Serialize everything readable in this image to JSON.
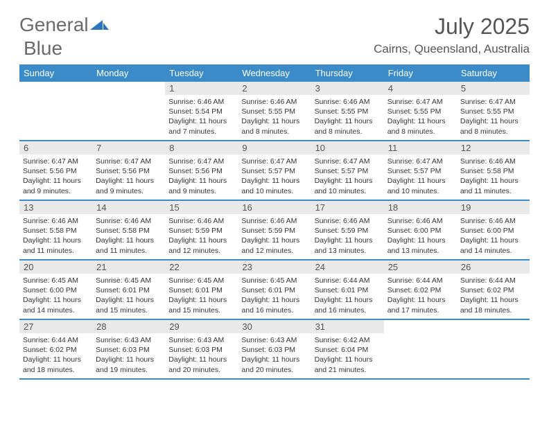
{
  "logo": {
    "word1": "General",
    "word2": "Blue"
  },
  "title": "July 2025",
  "location": "Cairns, Queensland, Australia",
  "colors": {
    "header_bg": "#3b8bc9",
    "header_text": "#ffffff",
    "daynum_bg": "#e9e9e9",
    "text": "#333333",
    "logo_text": "#6a6a6a",
    "logo_blue": "#2e75c0"
  },
  "weekdays": [
    "Sunday",
    "Monday",
    "Tuesday",
    "Wednesday",
    "Thursday",
    "Friday",
    "Saturday"
  ],
  "weeks": [
    [
      null,
      null,
      {
        "n": "1",
        "sr": "6:46 AM",
        "ss": "5:54 PM",
        "dl": "11 hours and 7 minutes."
      },
      {
        "n": "2",
        "sr": "6:46 AM",
        "ss": "5:55 PM",
        "dl": "11 hours and 8 minutes."
      },
      {
        "n": "3",
        "sr": "6:46 AM",
        "ss": "5:55 PM",
        "dl": "11 hours and 8 minutes."
      },
      {
        "n": "4",
        "sr": "6:47 AM",
        "ss": "5:55 PM",
        "dl": "11 hours and 8 minutes."
      },
      {
        "n": "5",
        "sr": "6:47 AM",
        "ss": "5:55 PM",
        "dl": "11 hours and 8 minutes."
      }
    ],
    [
      {
        "n": "6",
        "sr": "6:47 AM",
        "ss": "5:56 PM",
        "dl": "11 hours and 9 minutes."
      },
      {
        "n": "7",
        "sr": "6:47 AM",
        "ss": "5:56 PM",
        "dl": "11 hours and 9 minutes."
      },
      {
        "n": "8",
        "sr": "6:47 AM",
        "ss": "5:56 PM",
        "dl": "11 hours and 9 minutes."
      },
      {
        "n": "9",
        "sr": "6:47 AM",
        "ss": "5:57 PM",
        "dl": "11 hours and 10 minutes."
      },
      {
        "n": "10",
        "sr": "6:47 AM",
        "ss": "5:57 PM",
        "dl": "11 hours and 10 minutes."
      },
      {
        "n": "11",
        "sr": "6:47 AM",
        "ss": "5:57 PM",
        "dl": "11 hours and 10 minutes."
      },
      {
        "n": "12",
        "sr": "6:46 AM",
        "ss": "5:58 PM",
        "dl": "11 hours and 11 minutes."
      }
    ],
    [
      {
        "n": "13",
        "sr": "6:46 AM",
        "ss": "5:58 PM",
        "dl": "11 hours and 11 minutes."
      },
      {
        "n": "14",
        "sr": "6:46 AM",
        "ss": "5:58 PM",
        "dl": "11 hours and 11 minutes."
      },
      {
        "n": "15",
        "sr": "6:46 AM",
        "ss": "5:59 PM",
        "dl": "11 hours and 12 minutes."
      },
      {
        "n": "16",
        "sr": "6:46 AM",
        "ss": "5:59 PM",
        "dl": "11 hours and 12 minutes."
      },
      {
        "n": "17",
        "sr": "6:46 AM",
        "ss": "5:59 PM",
        "dl": "11 hours and 13 minutes."
      },
      {
        "n": "18",
        "sr": "6:46 AM",
        "ss": "6:00 PM",
        "dl": "11 hours and 13 minutes."
      },
      {
        "n": "19",
        "sr": "6:46 AM",
        "ss": "6:00 PM",
        "dl": "11 hours and 14 minutes."
      }
    ],
    [
      {
        "n": "20",
        "sr": "6:45 AM",
        "ss": "6:00 PM",
        "dl": "11 hours and 14 minutes."
      },
      {
        "n": "21",
        "sr": "6:45 AM",
        "ss": "6:01 PM",
        "dl": "11 hours and 15 minutes."
      },
      {
        "n": "22",
        "sr": "6:45 AM",
        "ss": "6:01 PM",
        "dl": "11 hours and 15 minutes."
      },
      {
        "n": "23",
        "sr": "6:45 AM",
        "ss": "6:01 PM",
        "dl": "11 hours and 16 minutes."
      },
      {
        "n": "24",
        "sr": "6:44 AM",
        "ss": "6:01 PM",
        "dl": "11 hours and 16 minutes."
      },
      {
        "n": "25",
        "sr": "6:44 AM",
        "ss": "6:02 PM",
        "dl": "11 hours and 17 minutes."
      },
      {
        "n": "26",
        "sr": "6:44 AM",
        "ss": "6:02 PM",
        "dl": "11 hours and 18 minutes."
      }
    ],
    [
      {
        "n": "27",
        "sr": "6:44 AM",
        "ss": "6:02 PM",
        "dl": "11 hours and 18 minutes."
      },
      {
        "n": "28",
        "sr": "6:43 AM",
        "ss": "6:03 PM",
        "dl": "11 hours and 19 minutes."
      },
      {
        "n": "29",
        "sr": "6:43 AM",
        "ss": "6:03 PM",
        "dl": "11 hours and 20 minutes."
      },
      {
        "n": "30",
        "sr": "6:43 AM",
        "ss": "6:03 PM",
        "dl": "11 hours and 20 minutes."
      },
      {
        "n": "31",
        "sr": "6:42 AM",
        "ss": "6:04 PM",
        "dl": "11 hours and 21 minutes."
      },
      null,
      null
    ]
  ],
  "labels": {
    "sunrise": "Sunrise:",
    "sunset": "Sunset:",
    "daylight": "Daylight:"
  }
}
